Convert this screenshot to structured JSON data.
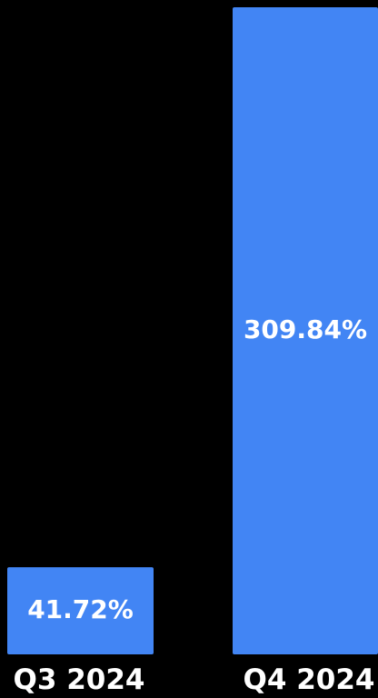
{
  "chart_data": {
    "type": "bar",
    "categories": [
      "Q3 2024",
      "Q4 2024"
    ],
    "values": [
      41.72,
      309.84
    ],
    "value_labels": [
      "41.72%",
      "309.84%"
    ],
    "unit": "%",
    "bar_color": "#4285F4",
    "background": "#000000",
    "label_color": "#FFFFFF",
    "grid": false,
    "legend": "none"
  }
}
